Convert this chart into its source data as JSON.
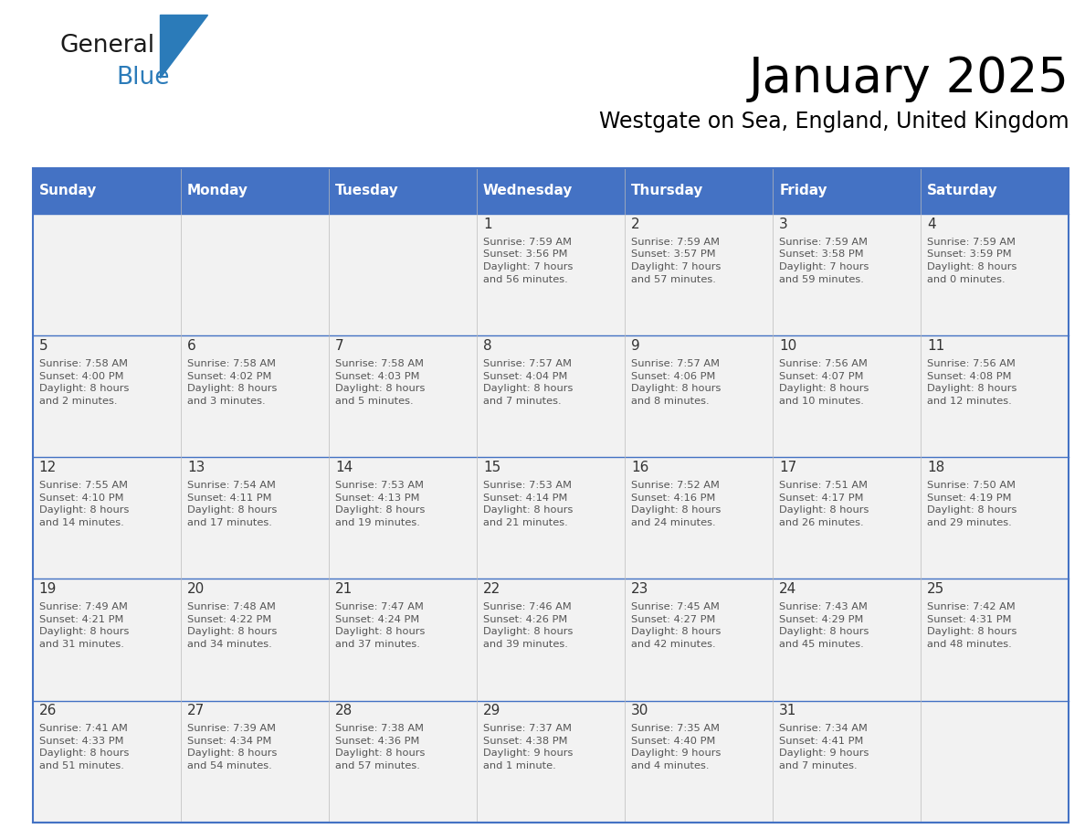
{
  "title": "January 2025",
  "subtitle": "Westgate on Sea, England, United Kingdom",
  "days_of_week": [
    "Sunday",
    "Monday",
    "Tuesday",
    "Wednesday",
    "Thursday",
    "Friday",
    "Saturday"
  ],
  "header_bg": "#4472C4",
  "header_text": "#FFFFFF",
  "row_bg": "#F2F2F2",
  "row_bg_white": "#FFFFFF",
  "border_color": "#4472C4",
  "row_separator_color": "#4472C4",
  "day_number_color": "#333333",
  "cell_text_color": "#555555",
  "calendar_data": [
    [
      null,
      null,
      null,
      {
        "day": 1,
        "sunrise": "7:59 AM",
        "sunset": "3:56 PM",
        "daylight": "7 hours and 56 minutes."
      },
      {
        "day": 2,
        "sunrise": "7:59 AM",
        "sunset": "3:57 PM",
        "daylight": "7 hours and 57 minutes."
      },
      {
        "day": 3,
        "sunrise": "7:59 AM",
        "sunset": "3:58 PM",
        "daylight": "7 hours and 59 minutes."
      },
      {
        "day": 4,
        "sunrise": "7:59 AM",
        "sunset": "3:59 PM",
        "daylight": "8 hours and 0 minutes."
      }
    ],
    [
      {
        "day": 5,
        "sunrise": "7:58 AM",
        "sunset": "4:00 PM",
        "daylight": "8 hours and 2 minutes."
      },
      {
        "day": 6,
        "sunrise": "7:58 AM",
        "sunset": "4:02 PM",
        "daylight": "8 hours and 3 minutes."
      },
      {
        "day": 7,
        "sunrise": "7:58 AM",
        "sunset": "4:03 PM",
        "daylight": "8 hours and 5 minutes."
      },
      {
        "day": 8,
        "sunrise": "7:57 AM",
        "sunset": "4:04 PM",
        "daylight": "8 hours and 7 minutes."
      },
      {
        "day": 9,
        "sunrise": "7:57 AM",
        "sunset": "4:06 PM",
        "daylight": "8 hours and 8 minutes."
      },
      {
        "day": 10,
        "sunrise": "7:56 AM",
        "sunset": "4:07 PM",
        "daylight": "8 hours and 10 minutes."
      },
      {
        "day": 11,
        "sunrise": "7:56 AM",
        "sunset": "4:08 PM",
        "daylight": "8 hours and 12 minutes."
      }
    ],
    [
      {
        "day": 12,
        "sunrise": "7:55 AM",
        "sunset": "4:10 PM",
        "daylight": "8 hours and 14 minutes."
      },
      {
        "day": 13,
        "sunrise": "7:54 AM",
        "sunset": "4:11 PM",
        "daylight": "8 hours and 17 minutes."
      },
      {
        "day": 14,
        "sunrise": "7:53 AM",
        "sunset": "4:13 PM",
        "daylight": "8 hours and 19 minutes."
      },
      {
        "day": 15,
        "sunrise": "7:53 AM",
        "sunset": "4:14 PM",
        "daylight": "8 hours and 21 minutes."
      },
      {
        "day": 16,
        "sunrise": "7:52 AM",
        "sunset": "4:16 PM",
        "daylight": "8 hours and 24 minutes."
      },
      {
        "day": 17,
        "sunrise": "7:51 AM",
        "sunset": "4:17 PM",
        "daylight": "8 hours and 26 minutes."
      },
      {
        "day": 18,
        "sunrise": "7:50 AM",
        "sunset": "4:19 PM",
        "daylight": "8 hours and 29 minutes."
      }
    ],
    [
      {
        "day": 19,
        "sunrise": "7:49 AM",
        "sunset": "4:21 PM",
        "daylight": "8 hours and 31 minutes."
      },
      {
        "day": 20,
        "sunrise": "7:48 AM",
        "sunset": "4:22 PM",
        "daylight": "8 hours and 34 minutes."
      },
      {
        "day": 21,
        "sunrise": "7:47 AM",
        "sunset": "4:24 PM",
        "daylight": "8 hours and 37 minutes."
      },
      {
        "day": 22,
        "sunrise": "7:46 AM",
        "sunset": "4:26 PM",
        "daylight": "8 hours and 39 minutes."
      },
      {
        "day": 23,
        "sunrise": "7:45 AM",
        "sunset": "4:27 PM",
        "daylight": "8 hours and 42 minutes."
      },
      {
        "day": 24,
        "sunrise": "7:43 AM",
        "sunset": "4:29 PM",
        "daylight": "8 hours and 45 minutes."
      },
      {
        "day": 25,
        "sunrise": "7:42 AM",
        "sunset": "4:31 PM",
        "daylight": "8 hours and 48 minutes."
      }
    ],
    [
      {
        "day": 26,
        "sunrise": "7:41 AM",
        "sunset": "4:33 PM",
        "daylight": "8 hours and 51 minutes."
      },
      {
        "day": 27,
        "sunrise": "7:39 AM",
        "sunset": "4:34 PM",
        "daylight": "8 hours and 54 minutes."
      },
      {
        "day": 28,
        "sunrise": "7:38 AM",
        "sunset": "4:36 PM",
        "daylight": "8 hours and 57 minutes."
      },
      {
        "day": 29,
        "sunrise": "7:37 AM",
        "sunset": "4:38 PM",
        "daylight": "9 hours and 1 minute."
      },
      {
        "day": 30,
        "sunrise": "7:35 AM",
        "sunset": "4:40 PM",
        "daylight": "9 hours and 4 minutes."
      },
      {
        "day": 31,
        "sunrise": "7:34 AM",
        "sunset": "4:41 PM",
        "daylight": "9 hours and 7 minutes."
      },
      null
    ]
  ],
  "logo_text1": "General",
  "logo_text2": "Blue",
  "logo_color1": "#1a1a1a",
  "logo_color2": "#2B7BB9",
  "logo_triangle_color": "#2B7BB9",
  "fig_width": 11.88,
  "fig_height": 9.18,
  "dpi": 100
}
